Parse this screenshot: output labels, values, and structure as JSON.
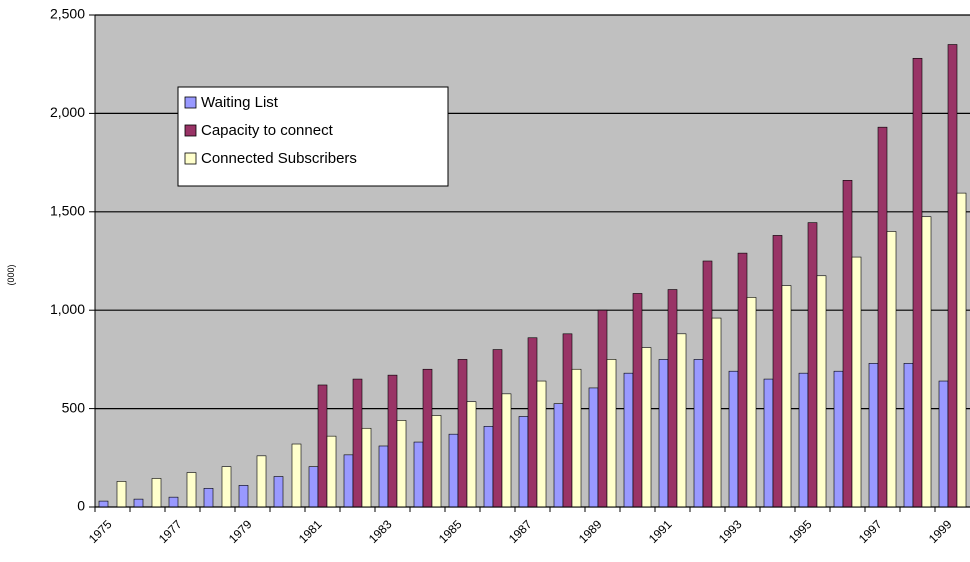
{
  "chart_data": {
    "type": "bar",
    "y_label": "(000)",
    "categories": [
      "1975",
      null,
      "1977",
      null,
      "1979",
      null,
      "1981",
      null,
      "1983",
      null,
      "1985",
      null,
      "1987",
      null,
      "1989",
      null,
      "1991",
      null,
      "1993",
      null,
      "1995",
      null,
      "1997",
      null,
      "1999"
    ],
    "series": [
      {
        "name": "Waiting List",
        "color": "#9999ff",
        "values": [
          30,
          40,
          50,
          95,
          110,
          155,
          205,
          265,
          310,
          330,
          370,
          410,
          460,
          525,
          605,
          680,
          750,
          750,
          690,
          650,
          680,
          690,
          730,
          730,
          640
        ]
      },
      {
        "name": "Capacity to connect",
        "color": "#993366",
        "values": [
          null,
          null,
          null,
          null,
          null,
          null,
          620,
          650,
          670,
          700,
          750,
          800,
          860,
          880,
          1000,
          1085,
          1105,
          1250,
          1290,
          1380,
          1445,
          1660,
          1930,
          2280,
          2350
        ]
      },
      {
        "name": "Connected Subscribers",
        "color": "#ffffcc",
        "values": [
          130,
          145,
          175,
          205,
          260,
          320,
          360,
          400,
          440,
          465,
          535,
          575,
          640,
          700,
          750,
          810,
          880,
          960,
          1065,
          1125,
          1175,
          1270,
          1400,
          1475,
          1595
        ]
      }
    ],
    "ylim": [
      0,
      2500
    ],
    "yticks": [
      0,
      500,
      {
        "value": 1000,
        "label": "1,000"
      },
      {
        "value": 1500,
        "label": "1,500"
      },
      {
        "value": 2000,
        "label": "2,000"
      },
      {
        "value": 2500,
        "label": "2,500"
      }
    ],
    "grid": true,
    "legend": "top-left",
    "plot_background": "#c0c0c0"
  }
}
